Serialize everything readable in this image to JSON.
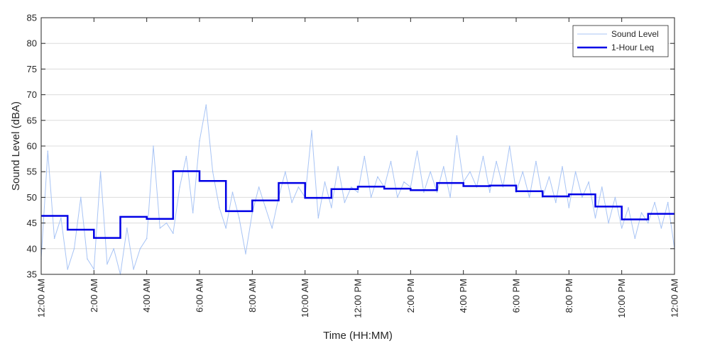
{
  "chart_data": {
    "type": "line",
    "xlabel": "Time (HH:MM)",
    "ylabel": "Sound Level (dBA)",
    "ylim": [
      35,
      85
    ],
    "xlim_hours": [
      0,
      24
    ],
    "grid": "horizontal major gridlines on",
    "legend_position": "top-right",
    "y_ticks": [
      35,
      40,
      45,
      50,
      55,
      60,
      65,
      70,
      75,
      80,
      85
    ],
    "x_ticks": [
      {
        "hour": 0,
        "label": "12:00 AM"
      },
      {
        "hour": 2,
        "label": "2:00 AM"
      },
      {
        "hour": 4,
        "label": "4:00 AM"
      },
      {
        "hour": 6,
        "label": "6:00 AM"
      },
      {
        "hour": 8,
        "label": "8:00 AM"
      },
      {
        "hour": 10,
        "label": "10:00 AM"
      },
      {
        "hour": 12,
        "label": "12:00 PM"
      },
      {
        "hour": 14,
        "label": "2:00 PM"
      },
      {
        "hour": 16,
        "label": "4:00 PM"
      },
      {
        "hour": 18,
        "label": "6:00 PM"
      },
      {
        "hour": 20,
        "label": "8:00 PM"
      },
      {
        "hour": 22,
        "label": "10:00 PM"
      },
      {
        "hour": 24,
        "label": "12:00 AM"
      }
    ],
    "series": [
      {
        "name": "Sound Level",
        "color": "#a8c4f5",
        "style": "thin line, high-frequency fluctuation",
        "x_hours": [
          0,
          0.25,
          0.5,
          0.75,
          1,
          1.25,
          1.5,
          1.75,
          2,
          2.25,
          2.5,
          2.75,
          3,
          3.25,
          3.5,
          3.75,
          4,
          4.25,
          4.5,
          4.75,
          5,
          5.25,
          5.5,
          5.75,
          6,
          6.25,
          6.5,
          6.75,
          7,
          7.25,
          7.5,
          7.75,
          8,
          8.25,
          8.5,
          8.75,
          9,
          9.25,
          9.5,
          9.75,
          10,
          10.25,
          10.5,
          10.75,
          11,
          11.25,
          11.5,
          11.75,
          12,
          12.25,
          12.5,
          12.75,
          13,
          13.25,
          13.5,
          13.75,
          14,
          14.25,
          14.5,
          14.75,
          15,
          15.25,
          15.5,
          15.75,
          16,
          16.25,
          16.5,
          16.75,
          17,
          17.25,
          17.5,
          17.75,
          18,
          18.25,
          18.5,
          18.75,
          19,
          19.25,
          19.5,
          19.75,
          20,
          20.25,
          20.5,
          20.75,
          21,
          21.25,
          21.5,
          21.75,
          22,
          22.25,
          22.5,
          22.75,
          23,
          23.25,
          23.5,
          23.75,
          24
        ],
        "values": [
          38,
          59,
          42,
          46,
          36,
          40,
          50,
          38,
          36,
          55,
          37,
          40,
          35,
          44,
          36,
          40,
          42,
          60,
          44,
          45,
          43,
          52,
          58,
          47,
          61,
          68,
          55,
          48,
          44,
          51,
          46,
          39,
          47,
          52,
          48,
          44,
          50,
          55,
          49,
          52,
          50,
          63,
          46,
          53,
          48,
          56,
          49,
          52,
          51,
          58,
          50,
          54,
          52,
          57,
          50,
          53,
          52,
          59,
          51,
          55,
          51,
          56,
          50,
          62,
          53,
          55,
          52,
          58,
          51,
          57,
          52,
          60,
          51,
          55,
          50,
          57,
          50,
          54,
          49,
          56,
          48,
          55,
          50,
          53,
          46,
          52,
          45,
          50,
          44,
          48,
          42,
          47,
          45,
          49,
          44,
          49,
          40
        ]
      },
      {
        "name": "1-Hour Leq",
        "color": "#0000e6",
        "style": "thick step line",
        "hour_start": [
          0,
          1,
          2,
          3,
          4,
          5,
          6,
          7,
          8,
          9,
          10,
          11,
          12,
          13,
          14,
          15,
          16,
          17,
          18,
          19,
          20,
          21,
          22,
          23
        ],
        "values": [
          46.4,
          43.7,
          42.1,
          46.2,
          45.8,
          55.1,
          53.2,
          47.3,
          49.4,
          52.8,
          49.9,
          51.6,
          52.1,
          51.7,
          51.4,
          52.8,
          52.2,
          52.3,
          51.2,
          50.2,
          50.6,
          48.2,
          45.7,
          46.8
        ]
      }
    ]
  }
}
